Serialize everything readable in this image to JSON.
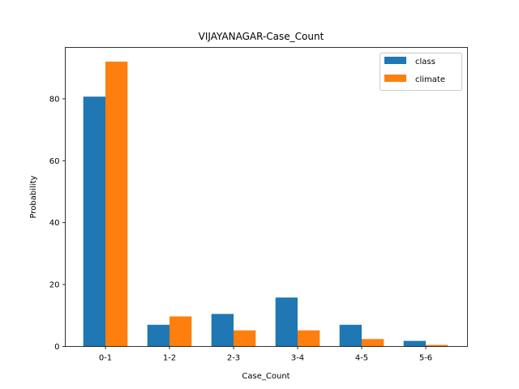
{
  "chart_data": {
    "type": "bar",
    "title": "VIJAYANAGAR-Case_Count",
    "xlabel": "Case_Count",
    "ylabel": "Probability",
    "categories": [
      "0-1",
      "1-2",
      "2-3",
      "3-4",
      "4-5",
      "5-6"
    ],
    "series": [
      {
        "name": "class",
        "color": "#1f77b4",
        "values": [
          80.7,
          7.0,
          10.5,
          15.8,
          7.0,
          1.8
        ]
      },
      {
        "name": "climate",
        "color": "#ff7f0e",
        "values": [
          92.0,
          9.7,
          5.2,
          5.2,
          2.4,
          0.5
        ]
      }
    ],
    "ylim": [
      0,
      96.6
    ],
    "yticks": [
      0,
      20,
      40,
      60,
      80
    ],
    "grid": false,
    "legend": "top-right"
  }
}
